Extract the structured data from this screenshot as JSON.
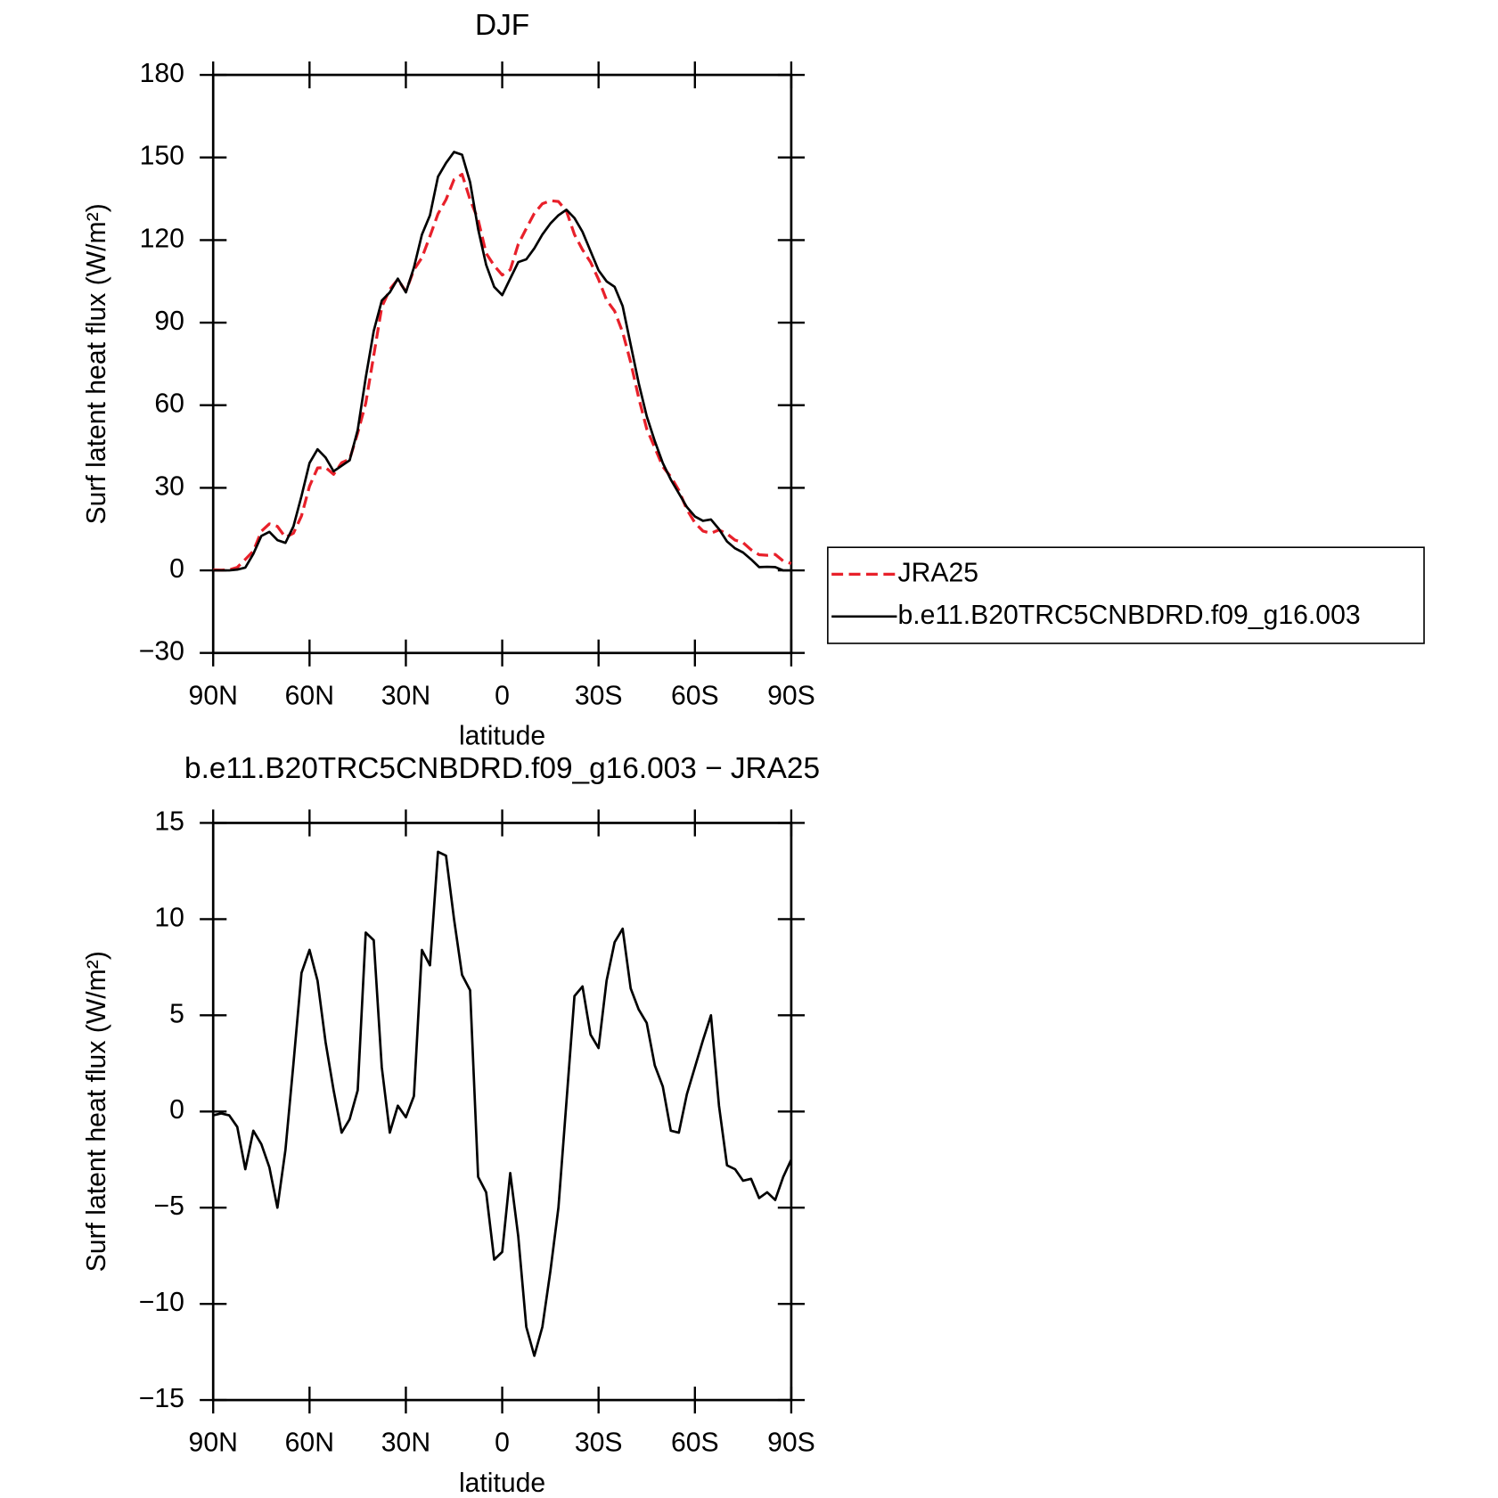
{
  "chart_data": [
    {
      "type": "line",
      "title": "DJF",
      "xlabel": "latitude",
      "ylabel": "Surf latent heat flux (W/m²)",
      "x": [
        90,
        87.5,
        85,
        82.5,
        80,
        77.5,
        75,
        72.5,
        70,
        67.5,
        65,
        62.5,
        60,
        57.5,
        55,
        52.5,
        50,
        47.5,
        45,
        42.5,
        40,
        37.5,
        35,
        32.5,
        30,
        27.5,
        25,
        22.5,
        20,
        17.5,
        15,
        12.5,
        10,
        7.5,
        5,
        2.5,
        0,
        -2.5,
        -5,
        -7.5,
        -10,
        -12.5,
        -15,
        -17.5,
        -20,
        -22.5,
        -25,
        -27.5,
        -30,
        -32.5,
        -35,
        -37.5,
        -40,
        -42.5,
        -45,
        -47.5,
        -50,
        -52.5,
        -55,
        -57.5,
        -60,
        -62.5,
        -65,
        -67.5,
        -70,
        -72.5,
        -75,
        -77.5,
        -80,
        -82.5,
        -85,
        -87.5,
        -90
      ],
      "xlim": [
        90,
        -90
      ],
      "xticks": [
        {
          "value": 90,
          "label": "90N"
        },
        {
          "value": 60,
          "label": "60N"
        },
        {
          "value": 30,
          "label": "30N"
        },
        0,
        {
          "value": -30,
          "label": "30S"
        },
        {
          "value": -60,
          "label": "60S"
        },
        {
          "value": -90,
          "label": "90S"
        }
      ],
      "ylim": [
        -30,
        180
      ],
      "yticks": [
        {
          "value": -30,
          "label": "−30"
        },
        0,
        30,
        60,
        90,
        120,
        150,
        180
      ],
      "legend": "right",
      "series": [
        {
          "name": "JRA25",
          "color": "#e8202a",
          "dashed": true,
          "values": [
            0.2,
            0.1,
            0.2,
            1.1,
            4,
            7,
            14.2,
            16.9,
            16,
            12,
            13.5,
            19.8,
            30.6,
            37.2,
            37.4,
            34.9,
            39.1,
            40.4,
            49.9,
            60.7,
            78.1,
            95.7,
            102.1,
            105.7,
            101.3,
            109.2,
            113.6,
            121.4,
            129.5,
            134.7,
            142,
            143.9,
            134.7,
            127.4,
            115.2,
            110.7,
            107.3,
            109.2,
            118.5,
            124.2,
            129.7,
            133.2,
            134.3,
            134,
            130.5,
            122,
            116.5,
            112,
            105.7,
            98.2,
            94.2,
            86.5,
            75.6,
            62.7,
            51.4,
            44.6,
            37.7,
            34,
            29.1,
            22.1,
            17.3,
            14.3,
            13.5,
            14.7,
            13.3,
            11,
            10.1,
            7.5,
            5.7,
            5.5,
            5.8,
            3.4,
            2.5
          ]
        },
        {
          "name": "b.e11.B20TRC5CNBDRD.f09_g16.003",
          "color": "#000000",
          "dashed": false,
          "values": [
            0,
            0,
            0,
            0.3,
            1,
            6,
            12.5,
            14,
            11,
            10,
            16,
            27,
            39,
            44,
            41,
            36,
            38,
            40,
            51,
            70,
            87,
            98,
            101,
            106,
            101,
            110,
            122,
            129,
            143,
            148,
            152,
            151,
            141,
            124,
            111,
            103,
            100,
            106,
            112,
            113,
            117,
            122,
            126,
            129,
            131,
            128,
            123,
            116,
            109,
            105,
            103,
            96,
            82,
            68,
            56,
            47,
            39,
            33,
            28,
            23,
            19.6,
            18,
            18.5,
            15,
            10.5,
            8,
            6.5,
            4,
            1.2,
            1.3,
            1.2,
            0,
            0
          ]
        }
      ]
    },
    {
      "type": "line",
      "title": "b.e11.B20TRC5CNBDRD.f09_g16.003 − JRA25",
      "xlabel": "latitude",
      "ylabel": "Surf latent heat flux (W/m²)",
      "x": [
        90,
        87.5,
        85,
        82.5,
        80,
        77.5,
        75,
        72.5,
        70,
        67.5,
        65,
        62.5,
        60,
        57.5,
        55,
        52.5,
        50,
        47.5,
        45,
        42.5,
        40,
        37.5,
        35,
        32.5,
        30,
        27.5,
        25,
        22.5,
        20,
        17.5,
        15,
        12.5,
        10,
        7.5,
        5,
        2.5,
        0,
        -2.5,
        -5,
        -7.5,
        -10,
        -12.5,
        -15,
        -17.5,
        -20,
        -22.5,
        -25,
        -27.5,
        -30,
        -32.5,
        -35,
        -37.5,
        -40,
        -42.5,
        -45,
        -47.5,
        -50,
        -52.5,
        -55,
        -57.5,
        -60,
        -62.5,
        -65,
        -67.5,
        -70,
        -72.5,
        -75,
        -77.5,
        -80,
        -82.5,
        -85,
        -87.5,
        -90
      ],
      "xlim": [
        90,
        -90
      ],
      "xticks": [
        {
          "value": 90,
          "label": "90N"
        },
        {
          "value": 60,
          "label": "60N"
        },
        {
          "value": 30,
          "label": "30N"
        },
        0,
        {
          "value": -30,
          "label": "30S"
        },
        {
          "value": -60,
          "label": "60S"
        },
        {
          "value": -90,
          "label": "90S"
        }
      ],
      "ylim": [
        -15,
        15
      ],
      "yticks": [
        {
          "value": -15,
          "label": "−15"
        },
        {
          "value": -10,
          "label": "−10"
        },
        {
          "value": -5,
          "label": "−5"
        },
        0,
        5,
        10,
        15
      ],
      "series": [
        {
          "color": "#000000",
          "dashed": false,
          "values": [
            -0.2,
            -0.1,
            -0.2,
            -0.8,
            -3.0,
            -1.0,
            -1.7,
            -2.9,
            -5.0,
            -2.0,
            2.5,
            7.2,
            8.4,
            6.8,
            3.6,
            1.1,
            -1.1,
            -0.4,
            1.1,
            9.3,
            8.9,
            2.3,
            -1.1,
            0.3,
            -0.3,
            0.8,
            8.4,
            7.6,
            13.5,
            13.3,
            10.0,
            7.1,
            6.3,
            -3.4,
            -4.2,
            -7.7,
            -7.3,
            -3.2,
            -6.5,
            -11.2,
            -12.7,
            -11.2,
            -8.3,
            -5.0,
            0.5,
            6.0,
            6.5,
            4.0,
            3.3,
            6.8,
            8.8,
            9.5,
            6.4,
            5.3,
            4.6,
            2.4,
            1.3,
            -1.0,
            -1.1,
            0.9,
            2.3,
            3.7,
            5.0,
            0.3,
            -2.8,
            -3.0,
            -3.6,
            -3.5,
            -4.5,
            -4.2,
            -4.6,
            -3.4,
            -2.5
          ]
        }
      ]
    }
  ]
}
